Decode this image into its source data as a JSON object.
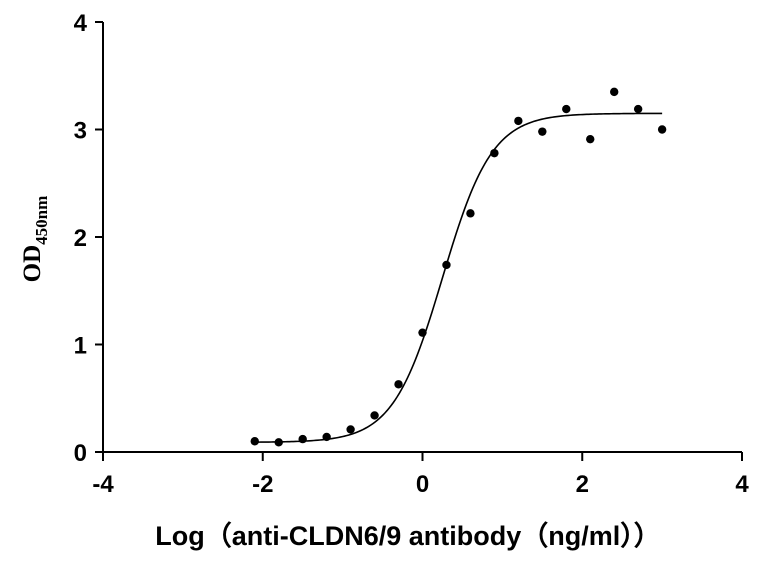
{
  "chart_data": {
    "type": "scatter",
    "title": "",
    "xlabel": "Log（anti-CLDN6/9 antibody（ng/ml））",
    "ylabel": "OD",
    "ylabel_subscript": "450nm",
    "xlim": [
      -4,
      4
    ],
    "ylim": [
      0,
      4
    ],
    "x_ticks": [
      "-4",
      "-2",
      "0",
      "2",
      "4"
    ],
    "y_ticks": [
      "0",
      "1",
      "2",
      "3",
      "4"
    ],
    "grid": false,
    "series": [
      {
        "points": [
          [
            -2.1,
            0.1
          ],
          [
            -1.8,
            0.09
          ],
          [
            -1.5,
            0.12
          ],
          [
            -1.2,
            0.14
          ],
          [
            -0.9,
            0.21
          ],
          [
            -0.6,
            0.34
          ],
          [
            -0.3,
            0.63
          ],
          [
            0.0,
            1.11
          ],
          [
            0.3,
            1.74
          ],
          [
            0.6,
            2.22
          ],
          [
            0.9,
            2.78
          ],
          [
            1.2,
            3.08
          ],
          [
            1.5,
            2.98
          ],
          [
            1.8,
            3.19
          ],
          [
            2.1,
            2.91
          ],
          [
            2.4,
            3.35
          ],
          [
            2.7,
            3.19
          ],
          [
            3.0,
            3.0
          ]
        ]
      }
    ],
    "fit_curve": {
      "model": "4PL",
      "bottom": 0.09,
      "top": 3.15,
      "log_ec50": 0.25,
      "hill_slope": 1.4,
      "x_range": [
        -2.1,
        3.0
      ]
    },
    "marker_color": "#000000",
    "line_color": "#000000"
  }
}
